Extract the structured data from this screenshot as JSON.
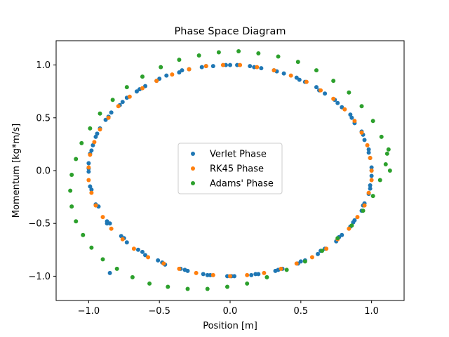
{
  "chart_data": {
    "type": "scatter",
    "title": "Phase Space Diagram",
    "xlabel": "Position [m]",
    "ylabel": "Momentum [kg*m/s]",
    "xlim": [
      -1.23,
      1.23
    ],
    "ylim": [
      -1.23,
      1.23
    ],
    "xticks": [
      -1.0,
      -0.5,
      0.0,
      0.5,
      1.0
    ],
    "xtick_labels": [
      "−1.0",
      "−0.5",
      "0.0",
      "0.5",
      "1.0"
    ],
    "yticks": [
      -1.0,
      -0.5,
      0.0,
      0.5,
      1.0
    ],
    "ytick_labels": [
      "−1.0",
      "−0.5",
      "0.0",
      "0.5",
      "1.0"
    ],
    "grid": false,
    "legend_position": "center",
    "series": [
      {
        "name": "Verlet Phase",
        "color": "#1f77b4",
        "x": [
          -0.85,
          -0.87,
          -0.73,
          -0.6,
          -0.46,
          -0.3,
          -0.14,
          0.03,
          0.2,
          0.37,
          0.53,
          0.67,
          0.79,
          0.88,
          0.95,
          0.99,
          1.0,
          0.98,
          0.93,
          0.85,
          0.74,
          0.61,
          0.47,
          0.31,
          0.14,
          -0.03,
          -0.2,
          -0.36,
          -0.52,
          -0.66,
          -0.78,
          -0.88,
          -0.95,
          -0.99,
          -1.0,
          -0.98,
          -0.93,
          -0.85,
          -0.75,
          -0.62,
          -0.48,
          -0.32,
          -0.16,
          0.01,
          0.18,
          0.34,
          0.5,
          0.64,
          0.77,
          0.87,
          0.94,
          0.99,
          1.0,
          0.98,
          0.94,
          0.86,
          0.76,
          0.63,
          0.49,
          0.33,
          0.17,
          0.0,
          -0.17,
          -0.34,
          -0.5,
          -0.64,
          -0.76,
          -0.86,
          -0.94,
          -0.98,
          -1.0,
          -0.99,
          -0.95,
          -0.87,
          -0.77,
          -0.65,
          -0.51,
          -0.35,
          -0.19,
          -0.02,
          0.15,
          0.32,
          0.48,
          0.62,
          0.75,
          0.85,
          0.93,
          0.98,
          1.0,
          0.99,
          0.95,
          0.88,
          0.79,
          0.67,
          0.53,
          0.38,
          0.22,
          0.05,
          -0.12,
          -0.29,
          -0.45,
          -0.6,
          -0.73,
          -0.84,
          -0.92,
          -0.97,
          -1.0
        ],
        "y": [
          -0.97,
          -0.5,
          -0.68,
          -0.8,
          -0.89,
          -0.95,
          -0.99,
          -1.0,
          -0.98,
          -0.93,
          -0.85,
          -0.74,
          -0.61,
          -0.47,
          -0.31,
          -0.14,
          0.03,
          0.2,
          0.37,
          0.53,
          0.67,
          0.79,
          0.88,
          0.95,
          0.99,
          1.0,
          0.98,
          0.93,
          0.85,
          0.75,
          0.62,
          0.48,
          0.32,
          0.16,
          -0.01,
          -0.18,
          -0.34,
          -0.5,
          -0.64,
          -0.77,
          -0.87,
          -0.94,
          -0.99,
          -1.0,
          -0.98,
          -0.94,
          -0.86,
          -0.76,
          -0.63,
          -0.49,
          -0.33,
          -0.17,
          0.0,
          0.17,
          0.34,
          0.5,
          0.64,
          0.76,
          0.86,
          0.94,
          0.98,
          1.0,
          0.99,
          0.95,
          0.87,
          0.77,
          0.65,
          0.51,
          0.35,
          0.19,
          0.02,
          -0.15,
          -0.32,
          -0.48,
          -0.62,
          -0.75,
          -0.85,
          -0.93,
          -0.98,
          -1.0,
          -0.99,
          -0.95,
          -0.88,
          -0.79,
          -0.67,
          -0.53,
          -0.38,
          -0.22,
          -0.05,
          0.12,
          0.29,
          0.45,
          0.6,
          0.73,
          0.84,
          0.92,
          0.97,
          1.0,
          0.99,
          0.96,
          0.9,
          0.8,
          0.69,
          0.55,
          0.4,
          0.24,
          0.07
        ]
      },
      {
        "name": "RK45 Phase",
        "color": "#ff7f0e",
        "x": [
          1.0,
          0.99,
          0.97,
          0.93,
          0.88,
          0.81,
          0.73,
          0.64,
          0.54,
          0.43,
          0.31,
          0.19,
          0.07,
          -0.05,
          -0.17,
          -0.29,
          -0.41,
          -0.52,
          -0.62,
          -0.71,
          -0.79,
          -0.86,
          -0.92,
          -0.96,
          -0.99,
          -1.0,
          -1.0,
          -0.98,
          -0.95,
          -0.9,
          -0.84,
          -0.76,
          -0.68,
          -0.58,
          -0.47,
          -0.36,
          -0.24,
          -0.12,
          0.0,
          0.12,
          0.24,
          0.36,
          0.47,
          0.58,
          0.68,
          0.76,
          0.84,
          0.9,
          0.95,
          0.98,
          1.0
        ],
        "y": [
          0.0,
          0.12,
          0.24,
          0.36,
          0.47,
          0.58,
          0.68,
          0.76,
          0.84,
          0.9,
          0.95,
          0.98,
          1.0,
          1.0,
          0.99,
          0.96,
          0.91,
          0.85,
          0.78,
          0.7,
          0.61,
          0.5,
          0.39,
          0.27,
          0.15,
          0.03,
          -0.09,
          -0.21,
          -0.33,
          -0.44,
          -0.55,
          -0.65,
          -0.74,
          -0.82,
          -0.88,
          -0.93,
          -0.97,
          -0.99,
          -1.0,
          -0.99,
          -0.97,
          -0.93,
          -0.88,
          -0.82,
          -0.74,
          -0.65,
          -0.55,
          -0.44,
          -0.33,
          -0.21,
          -0.09
        ]
      },
      {
        "name": "Adams' Phase",
        "color": "#2ca02c",
        "x": [
          1.13,
          1.11,
          1.07,
          1.01,
          0.93,
          0.84,
          0.73,
          0.61,
          0.48,
          0.34,
          0.2,
          0.06,
          -0.08,
          -0.22,
          -0.36,
          -0.49,
          -0.62,
          -0.73,
          -0.83,
          -0.92,
          -0.99,
          -1.05,
          -1.09,
          -1.12,
          -1.13,
          -1.12,
          -1.09,
          -1.04,
          -0.98,
          -0.9,
          -0.8,
          -0.69,
          -0.57,
          -0.44,
          -0.3,
          -0.16,
          -0.02,
          0.12,
          0.26,
          0.4,
          0.53,
          0.65,
          0.76,
          0.86,
          0.94,
          1.01,
          1.06,
          1.1,
          1.12
        ],
        "y": [
          0.0,
          0.16,
          0.32,
          0.47,
          0.61,
          0.74,
          0.85,
          0.95,
          1.03,
          1.08,
          1.11,
          1.13,
          1.12,
          1.09,
          1.05,
          0.98,
          0.89,
          0.79,
          0.67,
          0.54,
          0.4,
          0.26,
          0.11,
          -0.04,
          -0.19,
          -0.34,
          -0.48,
          -0.61,
          -0.73,
          -0.84,
          -0.93,
          -1.01,
          -1.07,
          -1.1,
          -1.12,
          -1.12,
          -1.1,
          -1.07,
          -1.01,
          -0.94,
          -0.86,
          -0.76,
          -0.64,
          -0.52,
          -0.38,
          -0.24,
          -0.09,
          0.06,
          0.2
        ]
      }
    ]
  }
}
